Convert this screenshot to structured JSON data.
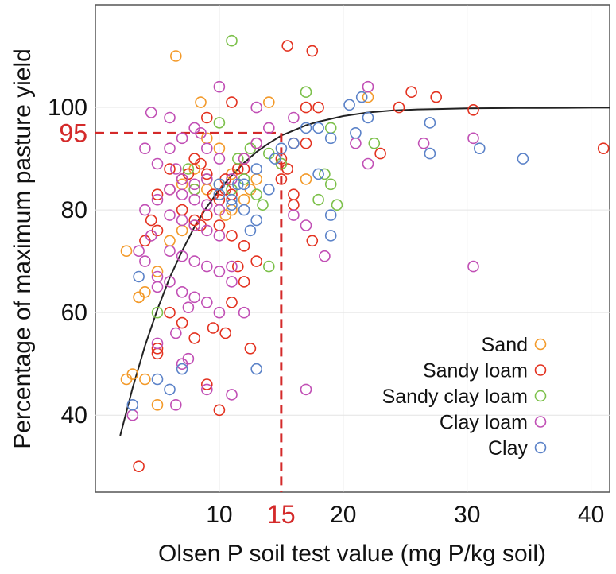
{
  "chart_data": {
    "type": "scatter",
    "xlabel": "Olsen P soil test value (mg P/kg soil)",
    "ylabel": "Percentage of maximum pasture yield",
    "xlim": [
      0,
      41.5
    ],
    "ylim": [
      25,
      120
    ],
    "xticks": [
      10,
      20,
      30,
      40
    ],
    "yticks": [
      40,
      60,
      80,
      100
    ],
    "grid": true,
    "legend_position": "bottom-right",
    "highlight": {
      "x": 15,
      "y": 95,
      "x_label": "15",
      "y_label": "95",
      "color": "#d42a2a"
    },
    "curve": {
      "color": "#222222",
      "x": [
        2,
        3,
        4,
        5,
        6,
        7,
        8,
        9,
        10,
        11,
        12,
        13,
        14,
        15,
        16,
        17,
        18,
        20,
        22,
        24,
        26,
        28,
        30,
        32,
        34,
        36,
        38,
        40,
        41.5
      ],
      "y": [
        36,
        45.3,
        53.5,
        60.6,
        66.8,
        72,
        76.7,
        80.6,
        83.9,
        86.7,
        89.2,
        91.3,
        93,
        94.5,
        95.5,
        96.5,
        97.2,
        98.3,
        99,
        99.4,
        99.6,
        99.7,
        99.8,
        99.85,
        99.9,
        99.9,
        99.92,
        99.95,
        99.95
      ]
    },
    "series": [
      {
        "name": "Sand",
        "color": "#f39a2a",
        "points": [
          [
            6.5,
            110
          ],
          [
            8.5,
            101
          ],
          [
            14,
            101
          ],
          [
            22,
            102
          ],
          [
            9,
            94
          ],
          [
            10,
            92
          ],
          [
            12,
            90
          ],
          [
            8,
            88
          ],
          [
            7,
            85
          ],
          [
            9,
            84
          ],
          [
            10,
            83
          ],
          [
            11,
            87
          ],
          [
            12.5,
            84
          ],
          [
            13,
            86
          ],
          [
            15,
            89
          ],
          [
            17,
            86
          ],
          [
            8,
            77
          ],
          [
            7,
            76
          ],
          [
            6,
            74
          ],
          [
            2.5,
            72
          ],
          [
            5,
            68
          ],
          [
            4,
            64
          ],
          [
            3.5,
            63
          ],
          [
            4,
            47
          ],
          [
            2.5,
            47
          ],
          [
            3,
            48
          ],
          [
            5,
            42
          ],
          [
            3.5,
            63
          ],
          [
            11,
            80
          ],
          [
            12,
            82
          ],
          [
            10.5,
            79
          ]
        ]
      },
      {
        "name": "Sandy loam",
        "color": "#e3311f",
        "points": [
          [
            15.5,
            112
          ],
          [
            17.5,
            111
          ],
          [
            11,
            101
          ],
          [
            17,
            100
          ],
          [
            18,
            100
          ],
          [
            24.5,
            100
          ],
          [
            25.5,
            103
          ],
          [
            27.5,
            102
          ],
          [
            30.5,
            99.5
          ],
          [
            41,
            92
          ],
          [
            9,
            98
          ],
          [
            13,
            93
          ],
          [
            15,
            90
          ],
          [
            16,
            93
          ],
          [
            17,
            93
          ],
          [
            23,
            91
          ],
          [
            8,
            90
          ],
          [
            8.5,
            89
          ],
          [
            9,
            87
          ],
          [
            10,
            85
          ],
          [
            10.5,
            84
          ],
          [
            11,
            83
          ],
          [
            7,
            86
          ],
          [
            6,
            88
          ],
          [
            7.5,
            87
          ],
          [
            8,
            84
          ],
          [
            9.5,
            83
          ],
          [
            10,
            82
          ],
          [
            10.5,
            86
          ],
          [
            11.5,
            88
          ],
          [
            12,
            88
          ],
          [
            7,
            80
          ],
          [
            8,
            78
          ],
          [
            8.5,
            77
          ],
          [
            9,
            79
          ],
          [
            10,
            77
          ],
          [
            11,
            75
          ],
          [
            12,
            73
          ],
          [
            13,
            70
          ],
          [
            6,
            84
          ],
          [
            5,
            83
          ],
          [
            4.5,
            78
          ],
          [
            5,
            76
          ],
          [
            4,
            74
          ],
          [
            11.5,
            69
          ],
          [
            12,
            66
          ],
          [
            11,
            62
          ],
          [
            7,
            58
          ],
          [
            8,
            55
          ],
          [
            9.5,
            57
          ],
          [
            10.5,
            56
          ],
          [
            12.5,
            53
          ],
          [
            9,
            46
          ],
          [
            10,
            41
          ],
          [
            3.5,
            30
          ],
          [
            16,
            81
          ],
          [
            17.5,
            74
          ],
          [
            15,
            86
          ],
          [
            15.5,
            88
          ],
          [
            16,
            83
          ],
          [
            5,
            53
          ],
          [
            6,
            60
          ],
          [
            5,
            52
          ]
        ]
      },
      {
        "name": "Sandy clay loam",
        "color": "#7cc04a",
        "points": [
          [
            11,
            113
          ],
          [
            17,
            103
          ],
          [
            10,
            97
          ],
          [
            19,
            96
          ],
          [
            22.5,
            93
          ],
          [
            14,
            91
          ],
          [
            15,
            89
          ],
          [
            9,
            86
          ],
          [
            10,
            85
          ],
          [
            11,
            84
          ],
          [
            12,
            86
          ],
          [
            13,
            83
          ],
          [
            13.5,
            81
          ],
          [
            18.5,
            87
          ],
          [
            19,
            85
          ],
          [
            18,
            82
          ],
          [
            19.5,
            81
          ],
          [
            14,
            69
          ],
          [
            5,
            60
          ],
          [
            8,
            84
          ],
          [
            7.5,
            88
          ],
          [
            11.5,
            90
          ],
          [
            12.5,
            92
          ]
        ]
      },
      {
        "name": "Clay loam",
        "color": "#c14fb5",
        "points": [
          [
            10,
            104
          ],
          [
            22,
            104
          ],
          [
            13,
            100
          ],
          [
            16,
            98
          ],
          [
            4.5,
            99
          ],
          [
            6,
            98
          ],
          [
            8,
            96
          ],
          [
            7,
            94
          ],
          [
            8.5,
            95
          ],
          [
            9,
            92
          ],
          [
            10,
            90
          ],
          [
            6,
            92
          ],
          [
            4,
            92
          ],
          [
            5,
            89
          ],
          [
            6.5,
            88
          ],
          [
            7,
            86
          ],
          [
            8,
            85
          ],
          [
            9,
            86
          ],
          [
            11,
            86
          ],
          [
            12,
            90
          ],
          [
            13,
            93
          ],
          [
            6,
            84
          ],
          [
            7,
            83
          ],
          [
            8,
            82
          ],
          [
            9,
            81
          ],
          [
            10,
            80
          ],
          [
            5,
            82
          ],
          [
            4,
            80
          ],
          [
            6,
            79
          ],
          [
            7,
            78
          ],
          [
            8,
            77
          ],
          [
            9,
            76
          ],
          [
            10,
            75
          ],
          [
            4.5,
            75
          ],
          [
            6,
            72
          ],
          [
            7,
            71
          ],
          [
            8,
            70
          ],
          [
            9,
            69
          ],
          [
            10,
            68
          ],
          [
            11,
            69
          ],
          [
            5,
            67
          ],
          [
            6,
            66
          ],
          [
            7,
            64
          ],
          [
            8,
            63
          ],
          [
            9,
            62
          ],
          [
            10,
            60
          ],
          [
            4,
            70
          ],
          [
            3.5,
            72
          ],
          [
            5,
            65
          ],
          [
            6.5,
            56
          ],
          [
            7.5,
            51
          ],
          [
            9,
            45
          ],
          [
            11,
            44
          ],
          [
            7,
            50
          ],
          [
            16,
            79
          ],
          [
            17,
            77
          ],
          [
            18.5,
            71
          ],
          [
            26.5,
            93
          ],
          [
            30.5,
            94
          ],
          [
            30.5,
            69
          ],
          [
            17,
            45
          ],
          [
            3,
            40
          ],
          [
            5,
            54
          ],
          [
            6.5,
            42
          ],
          [
            22,
            89
          ],
          [
            12,
            60
          ],
          [
            11,
            66
          ],
          [
            7.5,
            61
          ],
          [
            21,
            93
          ],
          [
            14,
            96
          ]
        ]
      },
      {
        "name": "Clay",
        "color": "#5b82c8",
        "points": [
          [
            20.5,
            100.5
          ],
          [
            21.5,
            102
          ],
          [
            27,
            97
          ],
          [
            31,
            92
          ],
          [
            34.5,
            90
          ],
          [
            27,
            91
          ],
          [
            22,
            98
          ],
          [
            21,
            95
          ],
          [
            19,
            94
          ],
          [
            18,
            96
          ],
          [
            17,
            96
          ],
          [
            16,
            93
          ],
          [
            14.5,
            90
          ],
          [
            13,
            88
          ],
          [
            12,
            85
          ],
          [
            11,
            82
          ],
          [
            10,
            83
          ],
          [
            12,
            80
          ],
          [
            13,
            78
          ],
          [
            12.5,
            76
          ],
          [
            19,
            79
          ],
          [
            18,
            87
          ],
          [
            19,
            75
          ],
          [
            10,
            85
          ],
          [
            6,
            45
          ],
          [
            5,
            47
          ],
          [
            7,
            49
          ],
          [
            13,
            49
          ],
          [
            3,
            42
          ],
          [
            3.5,
            67
          ],
          [
            11,
            81
          ],
          [
            14,
            84
          ],
          [
            15,
            92
          ],
          [
            11.5,
            85
          ]
        ]
      }
    ]
  }
}
